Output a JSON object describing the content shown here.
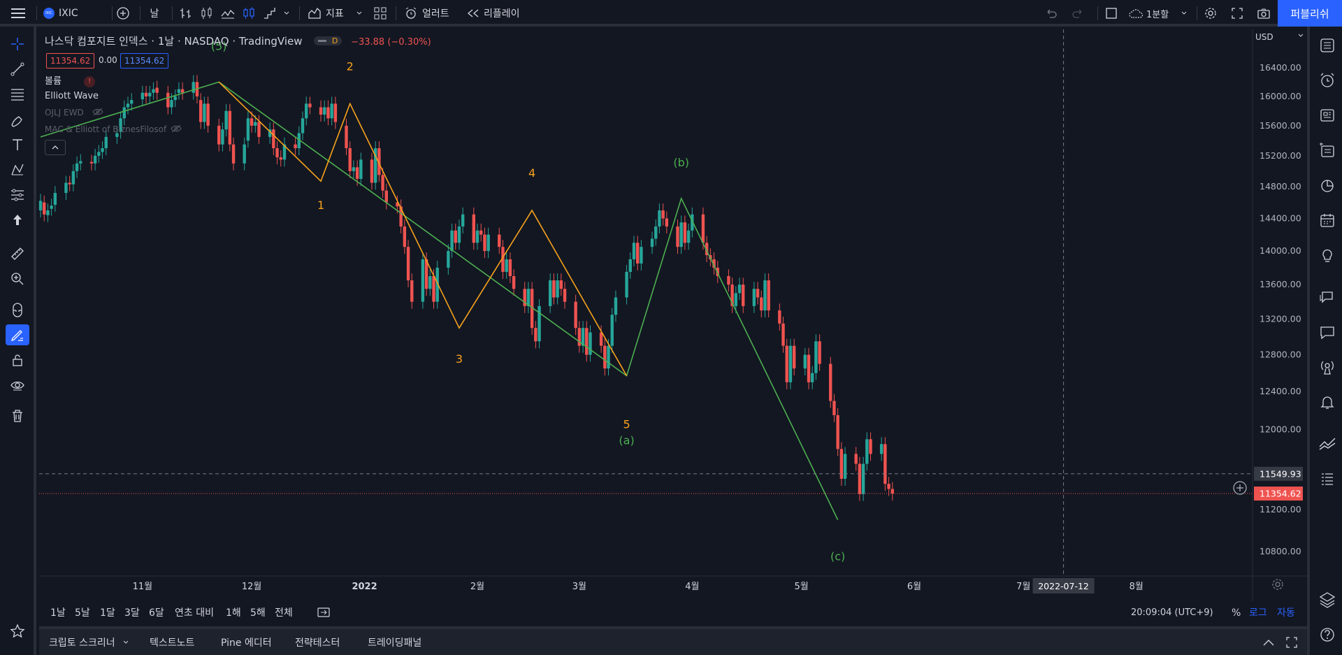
{
  "topbar": {
    "symbol": "IXIC",
    "symbol_logo": "IXIC",
    "interval": "날",
    "indicators_label": "지표",
    "alert_label": "얼러트",
    "replay_label": "리플레이",
    "layout_label": "1분할",
    "publish_label": "퍼블리쉬"
  },
  "legend": {
    "title": "나스닥 컴포지트 인덱스 · 1날 · NASDAQ · TradingView",
    "change": "−33.88 (−0.30%)",
    "badge": "D",
    "bid": "11354.62",
    "spread": "0.00",
    "ask": "11354.62",
    "indicators": [
      "볼륨",
      "Elliott Wave",
      "OJLJ EWD",
      "MAC & Elliott of BiznesFilosof"
    ]
  },
  "price_axis": {
    "currency": "USD",
    "labels": [
      "16400.00",
      "16000.00",
      "15600.00",
      "15200.00",
      "14800.00",
      "14400.00",
      "14000.00",
      "13600.00",
      "13200.00",
      "12800.00",
      "12400.00",
      "12000.00",
      "11200.00",
      "10800.00"
    ],
    "crosshair_price": "11549.93",
    "last_price": "11354.62"
  },
  "time_axis": {
    "labels": [
      "11월",
      "12월",
      "2022",
      "2월",
      "3월",
      "4월",
      "5월",
      "6월",
      "7월",
      "8월"
    ],
    "crosshair_date": "2022-07-12"
  },
  "wave_labels": {
    "orange": [
      "1",
      "2",
      "3",
      "4",
      "5"
    ],
    "green": [
      "(5)",
      "(a)",
      "(b)",
      "(c)"
    ]
  },
  "range_bar": {
    "items": [
      "1날",
      "5날",
      "1달",
      "3달",
      "6달",
      "연초 대비",
      "1해",
      "5해",
      "전체"
    ],
    "clock": "20:09:04 (UTC+9)",
    "percent": "%",
    "log": "로그",
    "auto": "자동"
  },
  "bottom_panel": {
    "tabs": [
      "크립토 스크리너",
      "텍스트노트",
      "Pine 에디터",
      "전략테스터",
      "트레이딩패널"
    ]
  },
  "colors": {
    "background": "#131722",
    "up": "#26a69a",
    "down": "#ef5350",
    "orange_wave": "#f7a21b",
    "green_wave": "#4caf50",
    "accent": "#2962ff"
  },
  "chart_data": {
    "type": "candlestick",
    "y_scale": "log",
    "currency": "USD",
    "x_range": [
      "2021-10-04",
      "2022-08-31"
    ],
    "y_range": [
      10550,
      16800
    ],
    "candles": [
      {
        "o": 14500,
        "c": 14620
      },
      {
        "o": 14600,
        "c": 14450
      },
      {
        "o": 14440,
        "c": 14500
      },
      {
        "o": 14520,
        "c": 14560
      },
      {
        "o": 14570,
        "c": 14720
      },
      {
        "o": 14720,
        "c": 14850
      },
      {
        "o": 14850,
        "c": 14830
      },
      {
        "o": 14830,
        "c": 15000
      },
      {
        "o": 15000,
        "c": 15100
      },
      {
        "o": 15100,
        "c": 15130
      },
      {
        "o": 15120,
        "c": 15100
      },
      {
        "o": 15100,
        "c": 15200
      },
      {
        "o": 15200,
        "c": 15250
      },
      {
        "o": 15250,
        "c": 15300
      },
      {
        "o": 15300,
        "c": 15450
      },
      {
        "o": 15450,
        "c": 15500
      },
      {
        "o": 15520,
        "c": 15700
      },
      {
        "o": 15700,
        "c": 15850
      },
      {
        "o": 15850,
        "c": 15900
      },
      {
        "o": 15900,
        "c": 15950
      },
      {
        "o": 15960,
        "c": 16050
      },
      {
        "o": 16050,
        "c": 16000
      },
      {
        "o": 16000,
        "c": 16050
      },
      {
        "o": 16050,
        "c": 16100
      },
      {
        "o": 16120,
        "c": 16050
      },
      {
        "o": 16050,
        "c": 15850
      },
      {
        "o": 15850,
        "c": 15950
      },
      {
        "o": 15950,
        "c": 16000
      },
      {
        "o": 16050,
        "c": 16100
      },
      {
        "o": 16100,
        "c": 16050
      },
      {
        "o": 16050,
        "c": 16200
      },
      {
        "o": 16200,
        "c": 16000
      },
      {
        "o": 15950,
        "c": 15650
      },
      {
        "o": 15650,
        "c": 15900
      },
      {
        "o": 15900,
        "c": 15600
      },
      {
        "o": 15600,
        "c": 15350
      },
      {
        "o": 15350,
        "c": 15550
      },
      {
        "o": 15550,
        "c": 15800
      },
      {
        "o": 15800,
        "c": 15350
      },
      {
        "o": 15350,
        "c": 15100
      },
      {
        "o": 15100,
        "c": 15350
      },
      {
        "o": 15400,
        "c": 15700
      },
      {
        "o": 15700,
        "c": 15600
      },
      {
        "o": 15600,
        "c": 15650
      },
      {
        "o": 15650,
        "c": 15450
      },
      {
        "o": 15450,
        "c": 15550
      },
      {
        "o": 15550,
        "c": 15300
      },
      {
        "o": 15300,
        "c": 15180
      },
      {
        "o": 15180,
        "c": 15150
      },
      {
        "o": 15150,
        "c": 15350
      },
      {
        "o": 15350,
        "c": 15300
      },
      {
        "o": 15300,
        "c": 15500
      },
      {
        "o": 15500,
        "c": 15700
      },
      {
        "o": 15700,
        "c": 15900
      },
      {
        "o": 15900,
        "c": 15850
      },
      {
        "o": 15850,
        "c": 15750
      },
      {
        "o": 15750,
        "c": 15850
      },
      {
        "o": 15850,
        "c": 15700
      },
      {
        "o": 15700,
        "c": 15900
      },
      {
        "o": 15900,
        "c": 15650
      },
      {
        "o": 15600,
        "c": 15300
      },
      {
        "o": 15300,
        "c": 15000
      },
      {
        "o": 15000,
        "c": 15050
      },
      {
        "o": 15050,
        "c": 14900
      },
      {
        "o": 14900,
        "c": 15150
      },
      {
        "o": 15150,
        "c": 14850
      },
      {
        "o": 14850,
        "c": 15300
      },
      {
        "o": 15300,
        "c": 14950
      },
      {
        "o": 14950,
        "c": 14750
      },
      {
        "o": 14750,
        "c": 14600
      },
      {
        "o": 14600,
        "c": 14550
      },
      {
        "o": 14550,
        "c": 14300
      },
      {
        "o": 14300,
        "c": 14050
      },
      {
        "o": 14050,
        "c": 13650
      },
      {
        "o": 13650,
        "c": 13400
      },
      {
        "o": 13400,
        "c": 13900
      },
      {
        "o": 13900,
        "c": 13550
      },
      {
        "o": 13550,
        "c": 13700
      },
      {
        "o": 13700,
        "c": 13400
      },
      {
        "o": 13400,
        "c": 13800
      },
      {
        "o": 13800,
        "c": 14000
      },
      {
        "o": 14000,
        "c": 14250
      },
      {
        "o": 14250,
        "c": 14100
      },
      {
        "o": 14100,
        "c": 14300
      },
      {
        "o": 14300,
        "c": 14450
      },
      {
        "o": 14450,
        "c": 14100
      },
      {
        "o": 14100,
        "c": 14250
      },
      {
        "o": 14250,
        "c": 14200
      },
      {
        "o": 14200,
        "c": 14000
      },
      {
        "o": 14000,
        "c": 14200
      },
      {
        "o": 14200,
        "c": 14050
      },
      {
        "o": 14050,
        "c": 13750
      },
      {
        "o": 13750,
        "c": 13900
      },
      {
        "o": 13900,
        "c": 13700
      },
      {
        "o": 13700,
        "c": 13550
      },
      {
        "o": 13550,
        "c": 13350
      },
      {
        "o": 13350,
        "c": 13550
      },
      {
        "o": 13550,
        "c": 13100
      },
      {
        "o": 13100,
        "c": 12950
      },
      {
        "o": 12950,
        "c": 13350
      },
      {
        "o": 13350,
        "c": 13650
      },
      {
        "o": 13650,
        "c": 13450
      },
      {
        "o": 13450,
        "c": 13650
      },
      {
        "o": 13650,
        "c": 13550
      },
      {
        "o": 13550,
        "c": 13400
      },
      {
        "o": 13400,
        "c": 13100
      },
      {
        "o": 13100,
        "c": 12900
      },
      {
        "o": 12900,
        "c": 13100
      },
      {
        "o": 13100,
        "c": 12800
      },
      {
        "o": 12800,
        "c": 13050
      },
      {
        "o": 13050,
        "c": 12900
      },
      {
        "o": 12900,
        "c": 12650
      },
      {
        "o": 12650,
        "c": 12900
      },
      {
        "o": 12900,
        "c": 13250
      },
      {
        "o": 13250,
        "c": 13450
      },
      {
        "o": 13450,
        "c": 13750
      },
      {
        "o": 13750,
        "c": 13900
      },
      {
        "o": 13900,
        "c": 14100
      },
      {
        "o": 14100,
        "c": 13850
      },
      {
        "o": 13850,
        "c": 14050
      },
      {
        "o": 14050,
        "c": 14150
      },
      {
        "o": 14150,
        "c": 14300
      },
      {
        "o": 14300,
        "c": 14500
      },
      {
        "o": 14500,
        "c": 14400
      },
      {
        "o": 14400,
        "c": 14300
      },
      {
        "o": 14300,
        "c": 14050
      },
      {
        "o": 14050,
        "c": 14350
      },
      {
        "o": 14350,
        "c": 14100
      },
      {
        "o": 14100,
        "c": 14250
      },
      {
        "o": 14250,
        "c": 14450
      },
      {
        "o": 14450,
        "c": 14100
      },
      {
        "o": 14100,
        "c": 13950
      },
      {
        "o": 13950,
        "c": 13900
      },
      {
        "o": 13900,
        "c": 13800
      },
      {
        "o": 13800,
        "c": 13700
      },
      {
        "o": 13700,
        "c": 13600
      },
      {
        "o": 13600,
        "c": 13350
      },
      {
        "o": 13350,
        "c": 13500
      },
      {
        "o": 13500,
        "c": 13600
      },
      {
        "o": 13600,
        "c": 13350
      },
      {
        "o": 13350,
        "c": 13550
      },
      {
        "o": 13550,
        "c": 13450
      },
      {
        "o": 13450,
        "c": 13300
      },
      {
        "o": 13300,
        "c": 13650
      },
      {
        "o": 13650,
        "c": 13300
      },
      {
        "o": 13300,
        "c": 13150
      },
      {
        "o": 13150,
        "c": 12900
      },
      {
        "o": 12900,
        "c": 12500
      },
      {
        "o": 12500,
        "c": 12900
      },
      {
        "o": 12900,
        "c": 12650
      },
      {
        "o": 12650,
        "c": 12800
      },
      {
        "o": 12800,
        "c": 12500
      },
      {
        "o": 12500,
        "c": 12600
      },
      {
        "o": 12600,
        "c": 12950
      },
      {
        "o": 12950,
        "c": 12700
      },
      {
        "o": 12700,
        "c": 12300
      },
      {
        "o": 12300,
        "c": 12150
      },
      {
        "o": 12150,
        "c": 11800
      },
      {
        "o": 11800,
        "c": 11500
      },
      {
        "o": 11500,
        "c": 11750
      },
      {
        "o": 11750,
        "c": 11650
      },
      {
        "o": 11650,
        "c": 11350
      },
      {
        "o": 11350,
        "c": 11650
      },
      {
        "o": 11650,
        "c": 11900
      },
      {
        "o": 11900,
        "c": 11750
      },
      {
        "o": 11750,
        "c": 11850
      },
      {
        "o": 11850,
        "c": 11450
      },
      {
        "o": 11450,
        "c": 11400
      },
      {
        "o": 11400,
        "c": 11354
      }
    ],
    "orange_wave": {
      "labels": [
        "1",
        "2",
        "3",
        "4",
        "5"
      ],
      "points": [
        [
          "2021-11-22",
          16200
        ],
        [
          "2021-12-20",
          14870
        ],
        [
          "2021-12-28",
          15900
        ],
        [
          "2022-01-27",
          13100
        ],
        [
          "2022-02-16",
          14500
        ],
        [
          "2022-03-14",
          12570
        ]
      ]
    },
    "green_wave": {
      "labels": [
        "(5)",
        "(a)",
        "(b)",
        "(c)"
      ],
      "points": [
        [
          "2021-10-04",
          15450
        ],
        [
          "2021-11-22",
          16200
        ],
        [
          "2022-03-14",
          12570
        ],
        [
          "2022-03-29",
          14650
        ],
        [
          "2022-05-11",
          11100
        ]
      ]
    }
  }
}
